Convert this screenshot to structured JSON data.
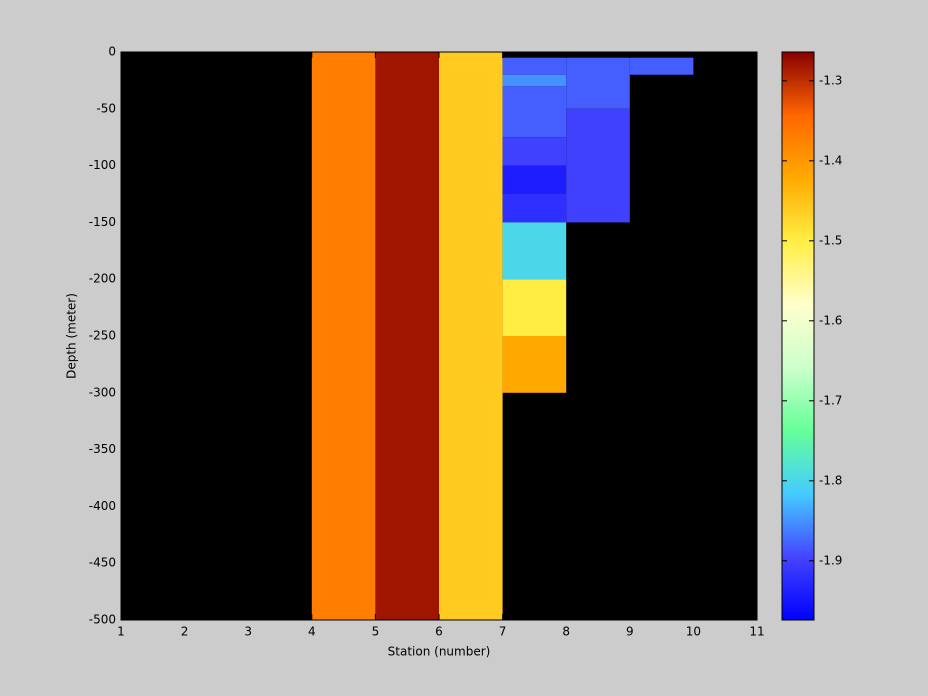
{
  "chart_data": {
    "type": "heatmap",
    "x_label": "Station (number)",
    "y_label": "Depth (meter)",
    "xlim": [
      1,
      11
    ],
    "xticks": [
      1,
      2,
      3,
      4,
      5,
      6,
      7,
      8,
      9,
      10,
      11
    ],
    "ylim": [
      -500,
      0
    ],
    "yticks": [
      0,
      -50,
      -100,
      -150,
      -200,
      -250,
      -300,
      -350,
      -400,
      -450,
      -500
    ],
    "background": "#000000",
    "clim": [
      -1.974,
      -1.264
    ],
    "cticks": [
      -1.3,
      -1.4,
      -1.5,
      -1.6,
      -1.7,
      -1.8,
      -1.9
    ],
    "colormap": [
      "#0000ff",
      "#4444ff",
      "#44ccff",
      "#66ff99",
      "#ccffcc",
      "#ffffcc",
      "#ffee44",
      "#ffaa00",
      "#ff6600",
      "#880000"
    ],
    "cells": [
      {
        "x": [
          4,
          5
        ],
        "y": [
          0,
          -500
        ],
        "value": -1.37
      },
      {
        "x": [
          5,
          6
        ],
        "y": [
          0,
          -500
        ],
        "value": -1.28
      },
      {
        "x": [
          6,
          7
        ],
        "y": [
          0,
          -500
        ],
        "value": -1.46
      },
      {
        "x": [
          7,
          8
        ],
        "y": [
          -5,
          -20
        ],
        "value": -1.88
      },
      {
        "x": [
          7,
          8
        ],
        "y": [
          -20,
          -30
        ],
        "value": -1.85
      },
      {
        "x": [
          7,
          8
        ],
        "y": [
          -30,
          -75
        ],
        "value": -1.88
      },
      {
        "x": [
          7,
          8
        ],
        "y": [
          -75,
          -100
        ],
        "value": -1.9
      },
      {
        "x": [
          7,
          8
        ],
        "y": [
          -100,
          -125
        ],
        "value": -1.94
      },
      {
        "x": [
          7,
          8
        ],
        "y": [
          -125,
          -150
        ],
        "value": -1.92
      },
      {
        "x": [
          7,
          8
        ],
        "y": [
          -150,
          -200
        ],
        "value": -1.8
      },
      {
        "x": [
          7,
          8
        ],
        "y": [
          -200,
          -250
        ],
        "value": -1.5
      },
      {
        "x": [
          7,
          8
        ],
        "y": [
          -250,
          -300
        ],
        "value": -1.42
      },
      {
        "x": [
          8,
          9
        ],
        "y": [
          -5,
          -50
        ],
        "value": -1.88
      },
      {
        "x": [
          8,
          9
        ],
        "y": [
          -50,
          -150
        ],
        "value": -1.9
      },
      {
        "x": [
          9,
          10
        ],
        "y": [
          -5,
          -20
        ],
        "value": -1.88
      }
    ]
  }
}
